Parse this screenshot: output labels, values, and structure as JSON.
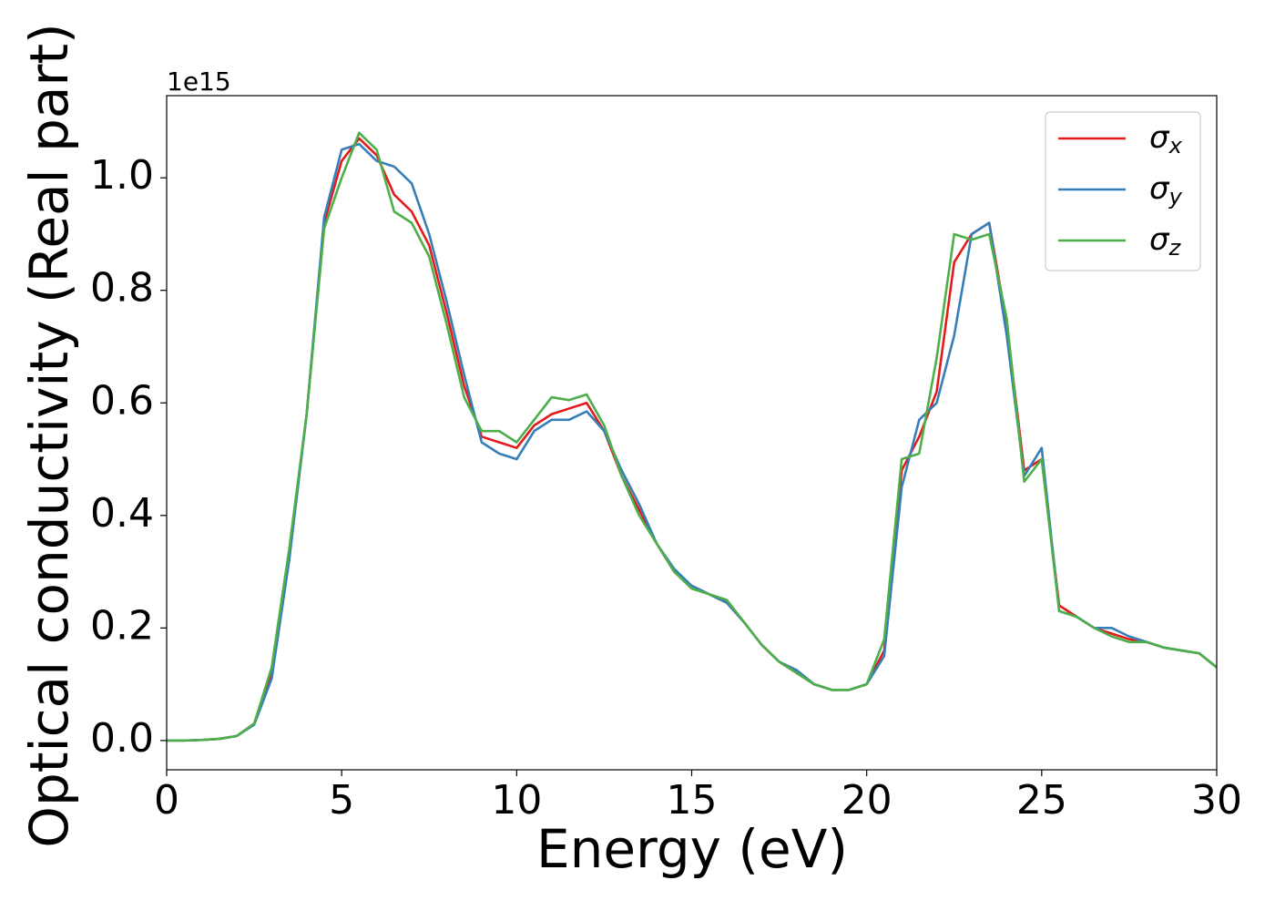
{
  "chart_data": {
    "type": "line",
    "x_label": "Energy (eV)",
    "y_label": "Optical conductivity (Real part)",
    "y_offset_label": "1e15",
    "x": [
      0,
      0.5,
      1,
      1.5,
      2,
      2.5,
      3,
      3.5,
      4,
      4.5,
      5,
      5.5,
      6,
      6.5,
      7,
      7.5,
      8,
      8.5,
      9,
      9.5,
      10,
      10.5,
      11,
      11.5,
      12,
      12.5,
      13,
      13.5,
      14,
      14.5,
      15,
      15.5,
      16,
      16.5,
      17,
      17.5,
      18,
      18.5,
      19,
      19.5,
      20,
      20.5,
      21,
      21.5,
      22,
      22.5,
      23,
      23.5,
      24,
      24.5,
      25,
      25.5,
      26,
      26.5,
      27,
      27.5,
      28,
      28.5,
      29,
      29.5,
      30
    ],
    "series": [
      {
        "name": "σx",
        "color": "#e41a1c",
        "values": [
          0,
          0,
          0.001,
          0.003,
          0.008,
          0.03,
          0.12,
          0.33,
          0.58,
          0.92,
          1.03,
          1.07,
          1.04,
          0.97,
          0.94,
          0.88,
          0.76,
          0.63,
          0.54,
          0.53,
          0.52,
          0.56,
          0.58,
          0.59,
          0.6,
          0.55,
          0.47,
          0.41,
          0.35,
          0.3,
          0.275,
          0.26,
          0.245,
          0.21,
          0.17,
          0.14,
          0.12,
          0.1,
          0.09,
          0.09,
          0.1,
          0.16,
          0.48,
          0.54,
          0.62,
          0.85,
          0.9,
          0.92,
          0.74,
          0.48,
          0.5,
          0.24,
          0.22,
          0.2,
          0.19,
          0.18,
          0.175,
          0.165,
          0.16,
          0.155,
          0.13
        ]
      },
      {
        "name": "σy",
        "color": "#377eb8",
        "values": [
          0,
          0,
          0.001,
          0.003,
          0.008,
          0.028,
          0.11,
          0.32,
          0.58,
          0.93,
          1.05,
          1.06,
          1.03,
          1.02,
          0.99,
          0.9,
          0.78,
          0.65,
          0.53,
          0.51,
          0.5,
          0.55,
          0.57,
          0.57,
          0.585,
          0.55,
          0.48,
          0.42,
          0.35,
          0.305,
          0.275,
          0.26,
          0.245,
          0.21,
          0.17,
          0.14,
          0.125,
          0.1,
          0.09,
          0.09,
          0.1,
          0.15,
          0.45,
          0.57,
          0.6,
          0.72,
          0.9,
          0.92,
          0.72,
          0.47,
          0.52,
          0.23,
          0.22,
          0.2,
          0.2,
          0.185,
          0.175,
          0.165,
          0.16,
          0.155,
          0.13
        ]
      },
      {
        "name": "σz",
        "color": "#4daf4a",
        "values": [
          0,
          0,
          0.001,
          0.003,
          0.008,
          0.03,
          0.13,
          0.34,
          0.58,
          0.91,
          1.0,
          1.08,
          1.05,
          0.94,
          0.92,
          0.86,
          0.74,
          0.61,
          0.55,
          0.55,
          0.53,
          0.57,
          0.61,
          0.605,
          0.615,
          0.56,
          0.47,
          0.4,
          0.35,
          0.3,
          0.27,
          0.26,
          0.25,
          0.21,
          0.17,
          0.14,
          0.12,
          0.1,
          0.09,
          0.09,
          0.1,
          0.18,
          0.5,
          0.51,
          0.68,
          0.9,
          0.89,
          0.9,
          0.75,
          0.46,
          0.5,
          0.23,
          0.22,
          0.2,
          0.185,
          0.175,
          0.175,
          0.165,
          0.16,
          0.155,
          0.13
        ]
      }
    ],
    "xlim": [
      0,
      30
    ],
    "xticks": [
      0,
      5,
      10,
      15,
      20,
      25,
      30
    ],
    "ylim": [
      -0.052,
      1.146
    ],
    "yticks": [
      {
        "value": 0,
        "label": "0.0"
      },
      {
        "value": 0.2,
        "label": "0.2"
      },
      {
        "value": 0.4,
        "label": "0.4"
      },
      {
        "value": 0.6,
        "label": "0.6"
      },
      {
        "value": 0.8,
        "label": "0.8"
      },
      {
        "value": 1,
        "label": "1.0"
      }
    ],
    "legend": "upper right",
    "grid": false
  }
}
